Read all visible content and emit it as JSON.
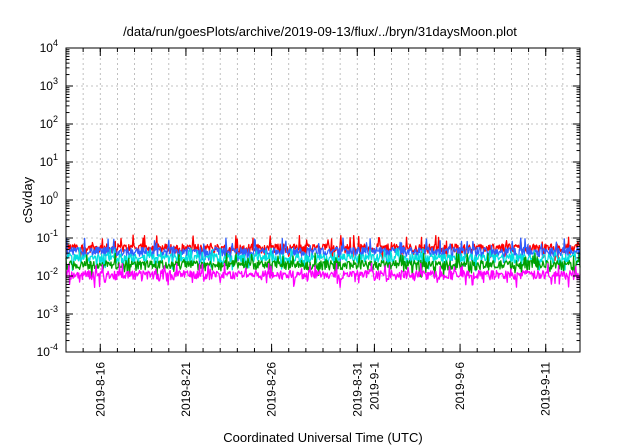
{
  "chart_data": {
    "type": "line",
    "title": "/data/run/goesPlots/archive/2019-09-13/flux/../bryn/31daysMoon.plot",
    "xlabel": "Coordinated Universal Time (UTC)",
    "ylabel": "cSv/day",
    "yscale": "log",
    "ylim": [
      0.0001,
      10000
    ],
    "xlim": [
      "2019-08-14",
      "2019-09-13"
    ],
    "y_ticks": [
      {
        "base": "10",
        "exp": "-4",
        "value": 0.0001
      },
      {
        "base": "10",
        "exp": "-3",
        "value": 0.001
      },
      {
        "base": "10",
        "exp": "-2",
        "value": 0.01
      },
      {
        "base": "10",
        "exp": "-1",
        "value": 0.1
      },
      {
        "base": "10",
        "exp": "0",
        "value": 1
      },
      {
        "base": "10",
        "exp": "1",
        "value": 10
      },
      {
        "base": "10",
        "exp": "2",
        "value": 100
      },
      {
        "base": "10",
        "exp": "3",
        "value": 1000
      },
      {
        "base": "10",
        "exp": "4",
        "value": 10000
      }
    ],
    "x_ticks": [
      {
        "label": "2019-8-16",
        "date": "2019-08-16"
      },
      {
        "label": "2019-8-21",
        "date": "2019-08-21"
      },
      {
        "label": "2019-8-26",
        "date": "2019-08-26"
      },
      {
        "label": "2019-8-31",
        "date": "2019-08-31"
      },
      {
        "label": "2019-9-1",
        "date": "2019-09-01"
      },
      {
        "label": "2019-9-6",
        "date": "2019-09-06"
      },
      {
        "label": "2019-9-11",
        "date": "2019-09-11"
      }
    ],
    "grid": true,
    "legend": "none",
    "series": [
      {
        "color": "#ff0000",
        "baseline": 0.055,
        "spike_max": 0.12
      },
      {
        "color": "#2f5fff",
        "baseline": 0.045,
        "spike_max": 0.1
      },
      {
        "color": "#00e0e0",
        "baseline": 0.03,
        "spike_max": 0.055
      },
      {
        "color": "#00a000",
        "baseline": 0.02,
        "spike_max": 0.04
      },
      {
        "color": "#ff00ff",
        "baseline": 0.011,
        "spike_max": 0.022
      }
    ]
  }
}
